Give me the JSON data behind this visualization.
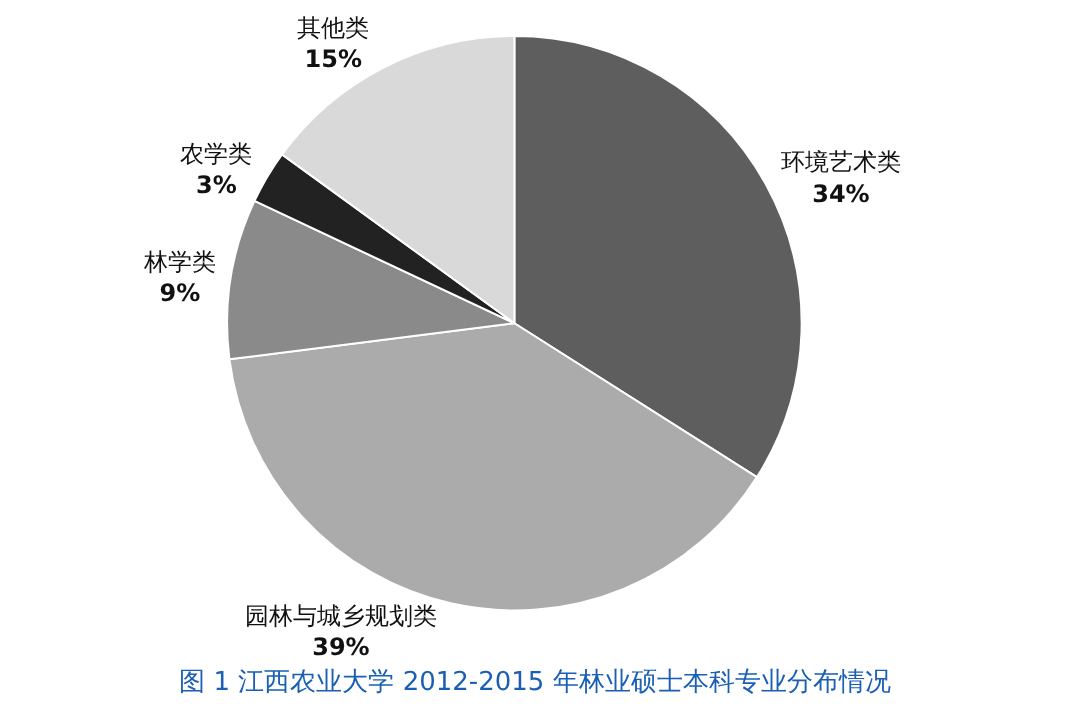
{
  "chart_data": {
    "type": "pie",
    "title": "图 1 江西农业大学 2012-2015 年林业硕士本科专业分布情况",
    "categories": [
      "环境艺术类",
      "园林与城乡规划类",
      "林学类",
      "农学类",
      "其他类"
    ],
    "values": [
      34,
      39,
      9,
      3,
      15
    ],
    "value_labels": [
      "34%",
      "39%",
      "9%",
      "3%",
      "15%"
    ],
    "colors": [
      "#5e5e5e",
      "#ababab",
      "#8a8a8a",
      "#222222",
      "#d9d9d9"
    ],
    "legend": false
  }
}
